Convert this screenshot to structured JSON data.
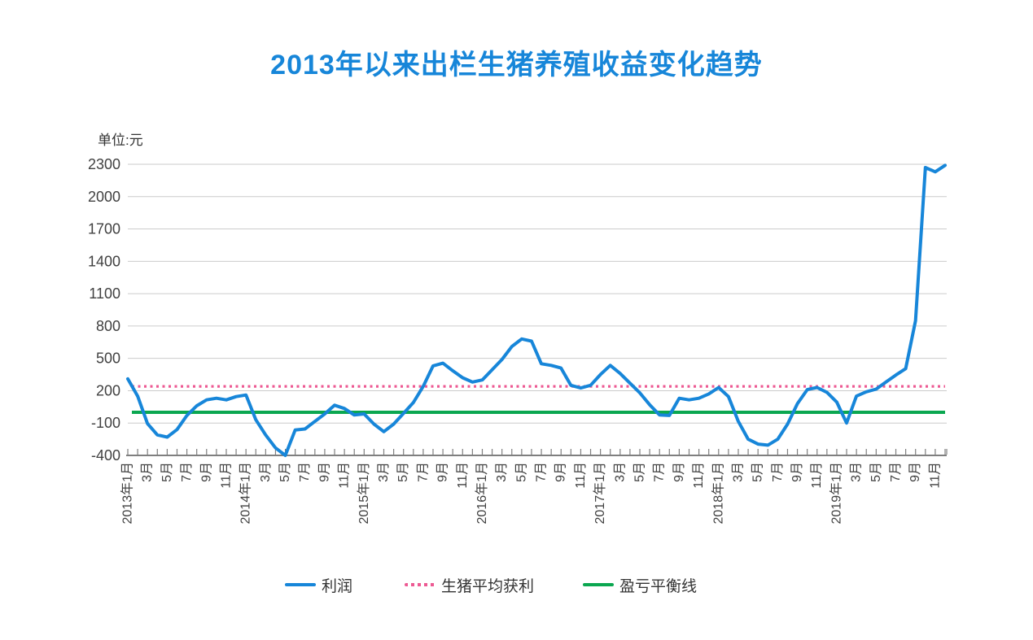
{
  "page": {
    "title": "2013年以来出栏生猪养殖收益变化趋势",
    "unit_label": "单位:元"
  },
  "colors": {
    "title_blue": "#1786D9",
    "profit_line": "#1786D9",
    "avg_profit_line": "#ED5A93",
    "breakeven_line": "#0BA750",
    "grid": "#CBCBCB",
    "axis": "#7F7F7F",
    "tick_label": "#404040",
    "legend_text": "#333333"
  },
  "legend": {
    "items": [
      {
        "label": "利润",
        "style": "solid",
        "color": "#1786D9"
      },
      {
        "label": "生猪平均获利",
        "style": "dotted",
        "color": "#ED5A93"
      },
      {
        "label": "盈亏平衡线",
        "style": "solid",
        "color": "#0BA750"
      }
    ]
  },
  "chart_data": {
    "type": "line",
    "title": "2013年以来出栏生猪养殖收益变化趋势",
    "unit": "元",
    "grid": "horizontal",
    "legend_position": "bottom",
    "ylim": [
      -400,
      2300
    ],
    "y_ticks": [
      2300,
      2000,
      1700,
      1400,
      1100,
      800,
      500,
      200,
      -100,
      -400
    ],
    "x_tick_label_every": 2,
    "x_axis_labels": [
      "2013年1月",
      "3月",
      "5月",
      "7月",
      "9月",
      "11月",
      "2014年1月",
      "3月",
      "5月",
      "7月",
      "9月",
      "11月",
      "2015年1月",
      "3月",
      "5月",
      "7月",
      "9月",
      "11月",
      "2016年1月",
      "3月",
      "5月",
      "7月",
      "9月",
      "11月",
      "2017年1月",
      "3月",
      "5月",
      "7月",
      "9月",
      "11月",
      "2018年1月",
      "3月",
      "5月",
      "7月",
      "9月",
      "11月",
      "2019年1月",
      "3月",
      "5月",
      "7月",
      "9月",
      "11月"
    ],
    "x": [
      "2013年1月",
      "2013年2月",
      "2013年3月",
      "2013年4月",
      "2013年5月",
      "2013年6月",
      "2013年7月",
      "2013年8月",
      "2013年9月",
      "2013年10月",
      "2013年11月",
      "2013年12月",
      "2014年1月",
      "2014年2月",
      "2014年3月",
      "2014年4月",
      "2014年5月",
      "2014年6月",
      "2014年7月",
      "2014年8月",
      "2014年9月",
      "2014年10月",
      "2014年11月",
      "2014年12月",
      "2015年1月",
      "2015年2月",
      "2015年3月",
      "2015年4月",
      "2015年5月",
      "2015年6月",
      "2015年7月",
      "2015年8月",
      "2015年9月",
      "2015年10月",
      "2015年11月",
      "2015年12月",
      "2016年1月",
      "2016年2月",
      "2016年3月",
      "2016年4月",
      "2016年5月",
      "2016年6月",
      "2016年7月",
      "2016年8月",
      "2016年9月",
      "2016年10月",
      "2016年11月",
      "2016年12月",
      "2017年1月",
      "2017年2月",
      "2017年3月",
      "2017年4月",
      "2017年5月",
      "2017年6月",
      "2017年7月",
      "2017年8月",
      "2017年9月",
      "2017年10月",
      "2017年11月",
      "2017年12月",
      "2018年1月",
      "2018年2月",
      "2018年3月",
      "2018年4月",
      "2018年5月",
      "2018年6月",
      "2018年7月",
      "2018年8月",
      "2018年9月",
      "2018年10月",
      "2018年11月",
      "2018年12月",
      "2019年1月",
      "2019年2月",
      "2019年3月",
      "2019年4月",
      "2019年5月",
      "2019年6月",
      "2019年7月",
      "2019年8月",
      "2019年9月",
      "2019年10月",
      "2019年11月",
      "2019年12月"
    ],
    "series": [
      {
        "name": "利润",
        "type": "line",
        "color": "#1786D9",
        "values": [
          310,
          150,
          -105,
          -210,
          -230,
          -160,
          -30,
          60,
          115,
          130,
          115,
          145,
          160,
          -70,
          -210,
          -330,
          -400,
          -165,
          -155,
          -85,
          -15,
          65,
          35,
          -25,
          -15,
          -110,
          -180,
          -110,
          -10,
          90,
          240,
          430,
          455,
          385,
          320,
          280,
          300,
          395,
          490,
          610,
          680,
          660,
          450,
          435,
          410,
          250,
          225,
          250,
          350,
          435,
          360,
          270,
          180,
          70,
          -25,
          -30,
          130,
          115,
          130,
          170,
          230,
          145,
          -85,
          -250,
          -295,
          -305,
          -250,
          -110,
          80,
          210,
          230,
          185,
          95,
          -100,
          150,
          190,
          215,
          280,
          345,
          405,
          850,
          2270,
          2230,
          2290
        ]
      },
      {
        "name": "生猪平均获利",
        "type": "constant-line",
        "style": "dotted",
        "color": "#ED5A93",
        "value": 240
      },
      {
        "name": "盈亏平衡线",
        "type": "constant-line",
        "style": "solid",
        "color": "#0BA750",
        "value": 0
      }
    ]
  }
}
